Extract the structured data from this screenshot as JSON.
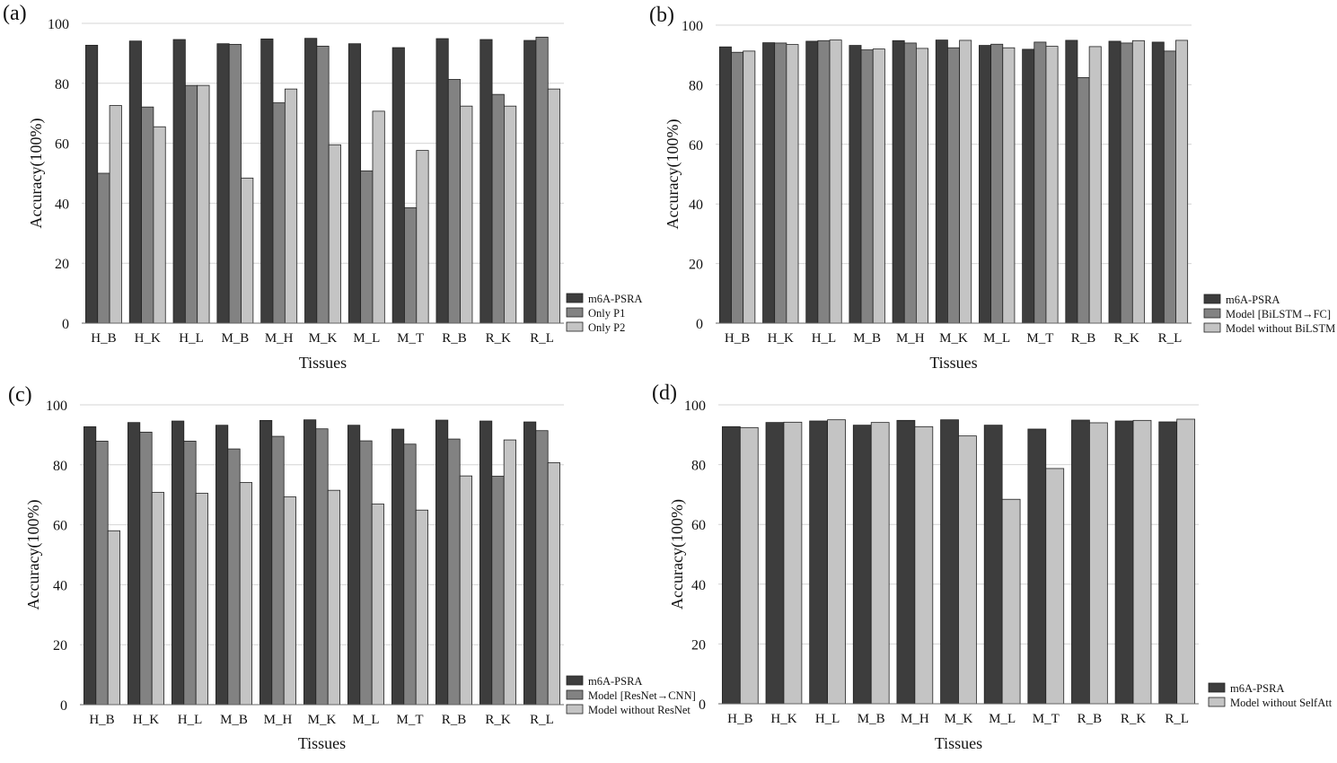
{
  "chart_data": [
    {
      "type": "bar",
      "panel_label": "(a)",
      "xlabel": "Tissues",
      "ylabel": "Accuracy(100%)",
      "ylim": [
        0,
        100
      ],
      "yticks": [
        0,
        20,
        40,
        60,
        80,
        100
      ],
      "grid": true,
      "legend_placement": "bottom-right",
      "categories": [
        "H_B",
        "H_K",
        "H_L",
        "M_B",
        "M_H",
        "M_K",
        "M_L",
        "M_T",
        "R_B",
        "R_K",
        "R_L"
      ],
      "series": [
        {
          "name": "m6A-PSRA",
          "color": "#3d3d3d",
          "values": [
            92.7,
            94.1,
            94.6,
            93.2,
            94.8,
            95.0,
            93.2,
            91.9,
            94.9,
            94.6,
            94.3
          ]
        },
        {
          "name": "Only P1",
          "color": "#828282",
          "values": [
            50.0,
            72.1,
            79.3,
            93.0,
            73.5,
            92.4,
            50.8,
            38.5,
            81.3,
            76.3,
            95.4
          ]
        },
        {
          "name": "Only P2",
          "color": "#c4c4c4",
          "values": [
            72.6,
            65.5,
            79.3,
            48.4,
            78.1,
            59.5,
            70.7,
            57.6,
            72.4,
            72.4,
            78.1
          ]
        }
      ]
    },
    {
      "type": "bar",
      "panel_label": "(b)",
      "xlabel": "Tissues",
      "ylabel": "Accuracy(100%)",
      "ylim": [
        0,
        100
      ],
      "yticks": [
        0,
        20,
        40,
        60,
        80,
        100
      ],
      "grid": true,
      "legend_placement": "bottom-right",
      "categories": [
        "H_B",
        "H_K",
        "H_L",
        "M_B",
        "M_H",
        "M_K",
        "M_L",
        "M_T",
        "R_B",
        "R_K",
        "R_L"
      ],
      "series": [
        {
          "name": "m6A-PSRA",
          "color": "#3d3d3d",
          "values": [
            92.7,
            94.1,
            94.6,
            93.2,
            94.8,
            95.0,
            93.2,
            91.9,
            94.9,
            94.6,
            94.3
          ]
        },
        {
          "name": "Model [BiLSTM→FC]",
          "color": "#828282",
          "values": [
            90.9,
            94.0,
            94.8,
            91.7,
            94.0,
            92.4,
            93.6,
            94.3,
            82.4,
            94.0,
            91.3
          ]
        },
        {
          "name": "Model without BiLSTM",
          "color": "#c4c4c4",
          "values": [
            91.3,
            93.5,
            95.0,
            92.0,
            92.2,
            94.9,
            92.4,
            92.9,
            92.8,
            94.8,
            94.9
          ]
        }
      ]
    },
    {
      "type": "bar",
      "panel_label": "(c)",
      "xlabel": "Tissues",
      "ylabel": "Accuracy(100%)",
      "ylim": [
        0,
        100
      ],
      "yticks": [
        0,
        20,
        40,
        60,
        80,
        100
      ],
      "grid": true,
      "legend_placement": "bottom-right",
      "categories": [
        "H_B",
        "H_K",
        "H_L",
        "M_B",
        "M_H",
        "M_K",
        "M_L",
        "M_T",
        "R_B",
        "R_K",
        "R_L"
      ],
      "series": [
        {
          "name": "m6A-PSRA",
          "color": "#3d3d3d",
          "values": [
            92.7,
            94.1,
            94.6,
            93.2,
            94.8,
            95.0,
            93.2,
            91.9,
            94.9,
            94.6,
            94.3
          ]
        },
        {
          "name": "Model [ResNet→CNN]",
          "color": "#828282",
          "values": [
            87.9,
            90.9,
            87.9,
            85.3,
            89.5,
            92.0,
            88.0,
            86.9,
            88.6,
            76.2,
            91.4
          ]
        },
        {
          "name": "Model without ResNet",
          "color": "#c4c4c4",
          "values": [
            58.0,
            70.8,
            70.5,
            74.1,
            69.3,
            71.5,
            66.9,
            64.9,
            76.3,
            88.3,
            80.7
          ]
        }
      ]
    },
    {
      "type": "bar",
      "panel_label": "(d)",
      "xlabel": "Tissues",
      "ylabel": "Accuracy(100%)",
      "ylim": [
        0,
        100
      ],
      "yticks": [
        0,
        20,
        40,
        60,
        80,
        100
      ],
      "grid": true,
      "legend_placement": "bottom-right",
      "categories": [
        "H_B",
        "H_K",
        "H_L",
        "M_B",
        "M_H",
        "M_K",
        "M_L",
        "M_T",
        "R_B",
        "R_K",
        "R_L"
      ],
      "series": [
        {
          "name": "m6A-PSRA",
          "color": "#3d3d3d",
          "values": [
            92.7,
            94.1,
            94.6,
            93.2,
            94.8,
            95.0,
            93.2,
            91.9,
            94.9,
            94.6,
            94.3
          ]
        },
        {
          "name": "Model without SelfAtt",
          "color": "#c4c4c4",
          "values": [
            92.4,
            94.2,
            95.0,
            94.1,
            92.7,
            89.6,
            68.4,
            78.7,
            94.0,
            94.8,
            95.2
          ]
        }
      ]
    }
  ]
}
